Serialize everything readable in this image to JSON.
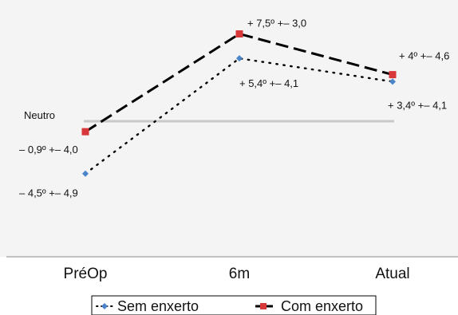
{
  "chart_data": {
    "type": "line",
    "title": "",
    "xlabel": "",
    "ylabel": "",
    "categories": [
      "PréOp",
      "6m",
      "Atual"
    ],
    "ylim": [
      -12,
      10
    ],
    "grid": false,
    "legend_position": "bottom",
    "reference_line": {
      "label": "Neutro",
      "value": 0
    },
    "series": [
      {
        "name": "Sem enxerto",
        "values": [
          -4.5,
          5.4,
          3.4
        ],
        "labels": [
          "– 4,5º +– 4,9",
          "+ 5,4º +– 4,1",
          "+ 3,4º +– 4,1"
        ],
        "line_style": "dotted",
        "line_color": "#000000",
        "marker_color": "#4a84c9"
      },
      {
        "name": "Com enxerto",
        "values": [
          -0.9,
          7.5,
          4.0
        ],
        "labels": [
          "– 0,9º +– 4,0",
          "+ 7,5º +– 3,0",
          "+ 4º +– 4,6"
        ],
        "line_style": "dashed",
        "line_color": "#000000",
        "marker_color": "#d9383a"
      }
    ]
  }
}
